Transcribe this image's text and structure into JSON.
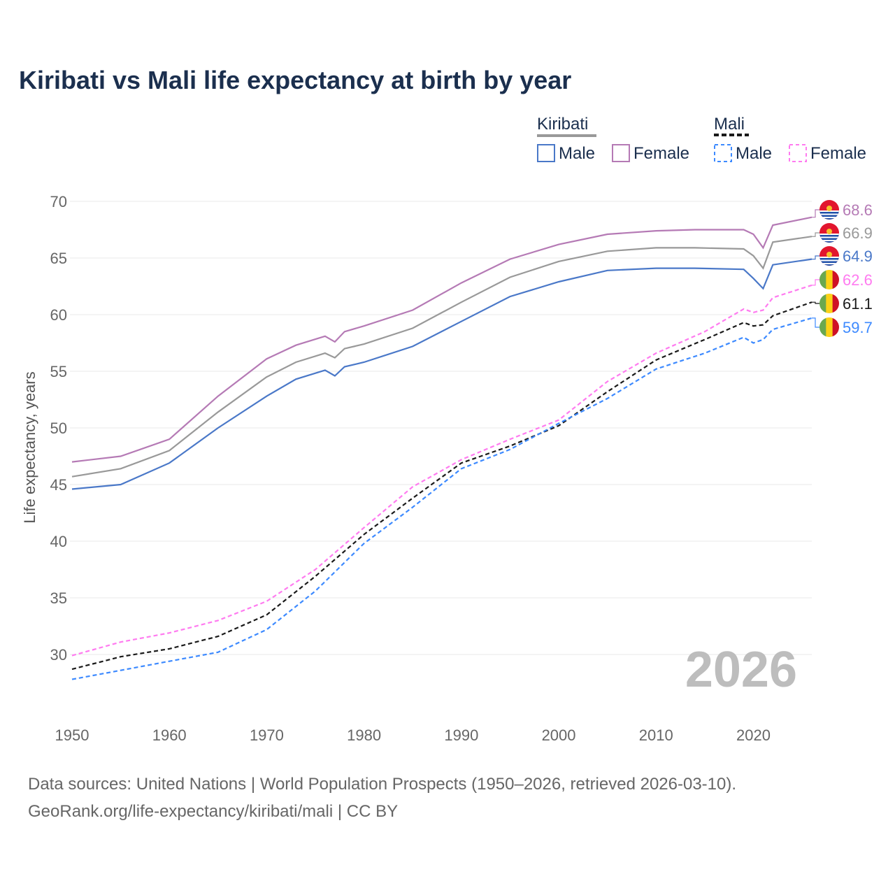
{
  "title": "Kiribati vs Mali life expectancy at birth by year",
  "footer": {
    "line1": "Data sources: United Nations | World Population Prospects (1950–2026, retrieved 2026-03-10).",
    "line2": "GeoRank.org/life-expectancy/kiribati/mali | CC BY"
  },
  "year_watermark": "2026",
  "chart_data": {
    "type": "line",
    "title": "Kiribati vs Mali life expectancy at birth by year",
    "xlabel": "",
    "ylabel": "Life expectancy, years",
    "xlim": [
      1950,
      2026
    ],
    "ylim": [
      26,
      72
    ],
    "xticks": [
      "1950",
      "1960",
      "1970",
      "1980",
      "1990",
      "2000",
      "2010",
      "2020"
    ],
    "yticks": [
      "30",
      "35",
      "40",
      "45",
      "50",
      "55",
      "60",
      "65",
      "70"
    ],
    "grid": true,
    "legend": {
      "groups": [
        {
          "country": "Kiribati",
          "style": "solid",
          "items": [
            "Male",
            "Female"
          ]
        },
        {
          "country": "Mali",
          "style": "dashed",
          "items": [
            "Male",
            "Female"
          ]
        }
      ],
      "placement": "top-right"
    },
    "series": [
      {
        "name": "Kiribati Female",
        "country": "Kiribati",
        "flag": "kiribati",
        "color": "#b57ab5",
        "dash": false,
        "end_label": "68.6",
        "x": [
          1950,
          1955,
          1960,
          1965,
          1970,
          1973,
          1976,
          1977,
          1978,
          1980,
          1985,
          1990,
          1995,
          2000,
          2005,
          2010,
          2014,
          2019,
          2020,
          2021,
          2022,
          2026
        ],
        "y": [
          47.0,
          47.5,
          49.0,
          52.8,
          56.1,
          57.3,
          58.1,
          57.6,
          58.5,
          59.0,
          60.4,
          62.8,
          64.9,
          66.2,
          67.1,
          67.4,
          67.5,
          67.5,
          67.1,
          65.9,
          67.9,
          68.6
        ]
      },
      {
        "name": "Kiribati",
        "country": "Kiribati",
        "flag": "kiribati",
        "color": "#999999",
        "dash": false,
        "end_label": "66.9",
        "x": [
          1950,
          1955,
          1960,
          1965,
          1970,
          1973,
          1976,
          1977,
          1978,
          1980,
          1985,
          1990,
          1995,
          2000,
          2005,
          2010,
          2014,
          2019,
          2020,
          2021,
          2022,
          2026
        ],
        "y": [
          45.7,
          46.4,
          48.0,
          51.4,
          54.5,
          55.8,
          56.6,
          56.2,
          57.0,
          57.4,
          58.8,
          61.1,
          63.3,
          64.7,
          65.6,
          65.9,
          65.9,
          65.8,
          65.2,
          64.1,
          66.4,
          66.9
        ]
      },
      {
        "name": "Kiribati Male",
        "country": "Kiribati",
        "flag": "kiribati",
        "color": "#4a78c8",
        "dash": false,
        "end_label": "64.9",
        "x": [
          1950,
          1955,
          1960,
          1965,
          1970,
          1973,
          1976,
          1977,
          1978,
          1980,
          1985,
          1990,
          1995,
          2000,
          2005,
          2010,
          2014,
          2019,
          2020,
          2021,
          2022,
          2026
        ],
        "y": [
          44.6,
          45.0,
          46.9,
          50.0,
          52.8,
          54.3,
          55.1,
          54.6,
          55.4,
          55.8,
          57.2,
          59.4,
          61.6,
          62.9,
          63.9,
          64.1,
          64.1,
          64.0,
          63.2,
          62.3,
          64.4,
          64.9
        ]
      },
      {
        "name": "Mali Female",
        "country": "Mali",
        "flag": "mali",
        "color": "#ff7bf0",
        "dash": true,
        "end_label": "62.6",
        "x": [
          1950,
          1955,
          1960,
          1965,
          1970,
          1975,
          1980,
          1985,
          1990,
          1995,
          2000,
          2005,
          2010,
          2015,
          2019,
          2020,
          2021,
          2022,
          2026
        ],
        "y": [
          29.9,
          31.1,
          31.9,
          33.0,
          34.7,
          37.5,
          41.2,
          44.8,
          47.2,
          49.0,
          50.7,
          54.1,
          56.6,
          58.5,
          60.5,
          60.2,
          60.4,
          61.5,
          62.6
        ]
      },
      {
        "name": "Mali",
        "country": "Mali",
        "flag": "mali",
        "color": "#1a1a1a",
        "dash": true,
        "end_label": "61.1",
        "x": [
          1950,
          1955,
          1960,
          1965,
          1970,
          1975,
          1980,
          1985,
          1990,
          1995,
          2000,
          2005,
          2010,
          2015,
          2019,
          2020,
          2021,
          2022,
          2026
        ],
        "y": [
          28.7,
          29.8,
          30.5,
          31.6,
          33.5,
          36.9,
          40.6,
          43.8,
          46.9,
          48.4,
          50.2,
          53.2,
          56.0,
          57.8,
          59.3,
          59.0,
          59.1,
          59.9,
          61.1
        ]
      },
      {
        "name": "Mali Male",
        "country": "Mali",
        "flag": "mali",
        "color": "#3d8aff",
        "dash": true,
        "end_label": "59.7",
        "x": [
          1950,
          1955,
          1960,
          1965,
          1970,
          1975,
          1980,
          1985,
          1990,
          1995,
          2000,
          2005,
          2010,
          2015,
          2019,
          2020,
          2021,
          2022,
          2026
        ],
        "y": [
          27.8,
          28.6,
          29.4,
          30.2,
          32.2,
          35.6,
          39.8,
          43.0,
          46.4,
          48.1,
          50.4,
          52.6,
          55.2,
          56.6,
          58.0,
          57.5,
          57.8,
          58.7,
          59.7
        ]
      }
    ]
  }
}
